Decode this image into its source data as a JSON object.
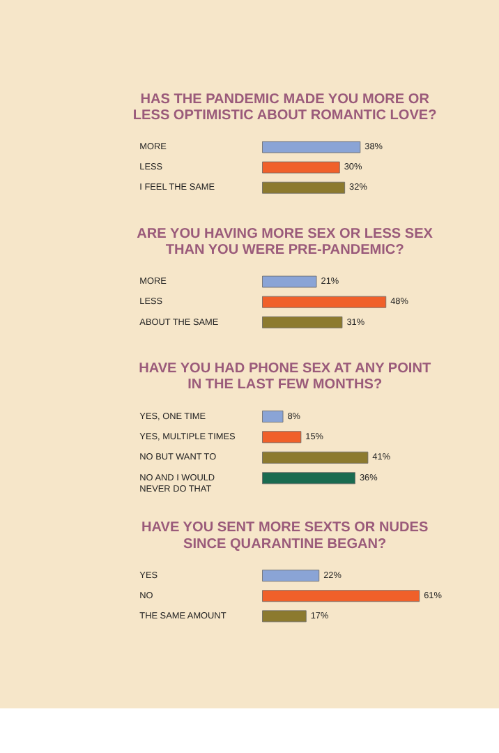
{
  "chart_data": [
    {
      "type": "bar",
      "orientation": "horizontal",
      "title": "HAS THE PANDEMIC MADE YOU MORE OR LESS OPTIMISTIC ABOUT ROMANTIC LOVE?",
      "categories": [
        "MORE",
        "LESS",
        "I FEEL THE SAME"
      ],
      "values": [
        38,
        30,
        32
      ],
      "colors": [
        "#8aa4d6",
        "#f0602a",
        "#8c7a2e"
      ],
      "value_labels": [
        "38%",
        "30%",
        "32%"
      ]
    },
    {
      "type": "bar",
      "orientation": "horizontal",
      "title": "ARE YOU HAVING MORE SEX OR LESS SEX THAN YOU WERE PRE-PANDEMIC?",
      "categories": [
        "MORE",
        "LESS",
        "ABOUT THE SAME"
      ],
      "values": [
        21,
        48,
        31
      ],
      "colors": [
        "#8aa4d6",
        "#f0602a",
        "#8c7a2e"
      ],
      "value_labels": [
        "21%",
        "48%",
        "31%"
      ]
    },
    {
      "type": "bar",
      "orientation": "horizontal",
      "title": "HAVE YOU HAD PHONE SEX AT ANY POINT IN THE LAST FEW MONTHS?",
      "categories": [
        "YES, ONE TIME",
        "YES, MULTIPLE TIMES",
        "NO BUT WANT TO",
        "NO AND I WOULD NEVER DO THAT"
      ],
      "values": [
        8,
        15,
        41,
        36
      ],
      "colors": [
        "#8aa4d6",
        "#f0602a",
        "#8c7a2e",
        "#1a6b50"
      ],
      "value_labels": [
        "8%",
        "15%",
        "41%",
        "36%"
      ]
    },
    {
      "type": "bar",
      "orientation": "horizontal",
      "title": "HAVE YOU SENT MORE SEXTS OR NUDES SINCE QUARANTINE BEGAN?",
      "categories": [
        "YES",
        "NO",
        "THE SAME AMOUNT"
      ],
      "values": [
        22,
        61,
        17
      ],
      "colors": [
        "#8aa4d6",
        "#f0602a",
        "#8c7a2e"
      ],
      "value_labels": [
        "22%",
        "61%",
        "17%"
      ]
    }
  ]
}
